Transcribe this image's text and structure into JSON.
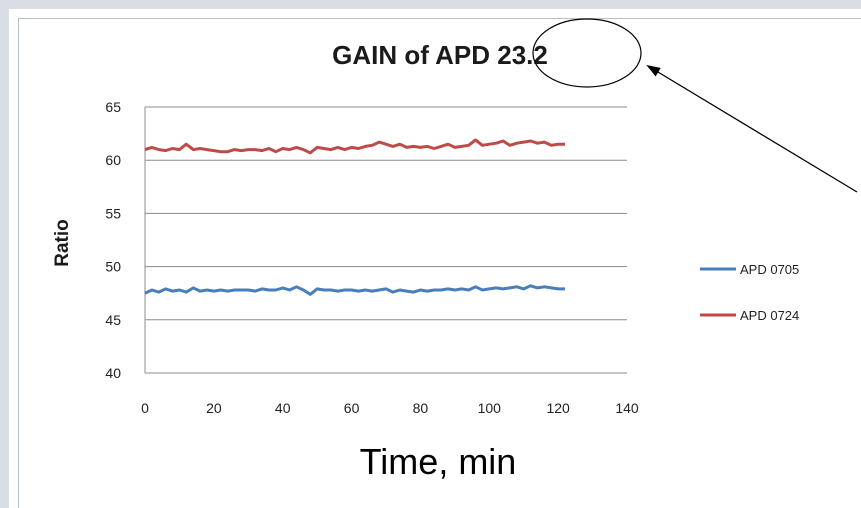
{
  "chart_data": {
    "type": "line",
    "title": "GAIN of APD 23.2",
    "xlabel": "Time, min",
    "ylabel": "Ratio",
    "xlim": [
      0,
      140
    ],
    "ylim": [
      40,
      65
    ],
    "xticks": [
      "0",
      "20",
      "40",
      "60",
      "80",
      "100",
      "120",
      "140"
    ],
    "yticks": [
      "40",
      "45",
      "50",
      "55",
      "60",
      "65"
    ],
    "grid": "horizontal",
    "legend_position": "right",
    "series": [
      {
        "name": "APD 0705",
        "color": "#4a7ebb",
        "x": [
          0,
          2,
          4,
          6,
          8,
          10,
          12,
          14,
          16,
          18,
          20,
          22,
          24,
          26,
          28,
          30,
          32,
          34,
          36,
          38,
          40,
          42,
          44,
          46,
          48,
          50,
          52,
          54,
          56,
          58,
          60,
          62,
          64,
          66,
          68,
          70,
          72,
          74,
          76,
          78,
          80,
          82,
          84,
          86,
          88,
          90,
          92,
          94,
          96,
          98,
          100,
          102,
          104,
          106,
          108,
          110,
          112,
          114,
          116,
          118,
          120,
          122
        ],
        "values": [
          47.5,
          47.8,
          47.6,
          47.9,
          47.7,
          47.8,
          47.6,
          48.0,
          47.7,
          47.8,
          47.7,
          47.8,
          47.7,
          47.8,
          47.8,
          47.8,
          47.7,
          47.9,
          47.8,
          47.8,
          48.0,
          47.8,
          48.1,
          47.8,
          47.4,
          47.9,
          47.8,
          47.8,
          47.7,
          47.8,
          47.8,
          47.7,
          47.8,
          47.7,
          47.8,
          47.9,
          47.6,
          47.8,
          47.7,
          47.6,
          47.8,
          47.7,
          47.8,
          47.8,
          47.9,
          47.8,
          47.9,
          47.8,
          48.1,
          47.8,
          47.9,
          48.0,
          47.9,
          48.0,
          48.1,
          47.9,
          48.2,
          48.0,
          48.1,
          48.0,
          47.9,
          47.9
        ]
      },
      {
        "name": "APD 0724",
        "color": "#be4b48",
        "x": [
          0,
          2,
          4,
          6,
          8,
          10,
          12,
          14,
          16,
          18,
          20,
          22,
          24,
          26,
          28,
          30,
          32,
          34,
          36,
          38,
          40,
          42,
          44,
          46,
          48,
          50,
          52,
          54,
          56,
          58,
          60,
          62,
          64,
          66,
          68,
          70,
          72,
          74,
          76,
          78,
          80,
          82,
          84,
          86,
          88,
          90,
          92,
          94,
          96,
          98,
          100,
          102,
          104,
          106,
          108,
          110,
          112,
          114,
          116,
          118,
          120,
          122
        ],
        "values": [
          61.0,
          61.2,
          61.0,
          60.9,
          61.1,
          61.0,
          61.5,
          61.0,
          61.1,
          61.0,
          60.9,
          60.8,
          60.8,
          61.0,
          60.9,
          61.0,
          61.0,
          60.9,
          61.1,
          60.8,
          61.1,
          61.0,
          61.2,
          61.0,
          60.7,
          61.2,
          61.1,
          61.0,
          61.2,
          61.0,
          61.2,
          61.1,
          61.3,
          61.4,
          61.7,
          61.5,
          61.3,
          61.5,
          61.2,
          61.3,
          61.2,
          61.3,
          61.1,
          61.3,
          61.5,
          61.2,
          61.3,
          61.4,
          61.9,
          61.4,
          61.5,
          61.6,
          61.8,
          61.4,
          61.6,
          61.7,
          61.8,
          61.6,
          61.7,
          61.4,
          61.5,
          61.5
        ]
      }
    ]
  },
  "annotation": {
    "type": "circle-with-arrow",
    "target": "23.2"
  }
}
